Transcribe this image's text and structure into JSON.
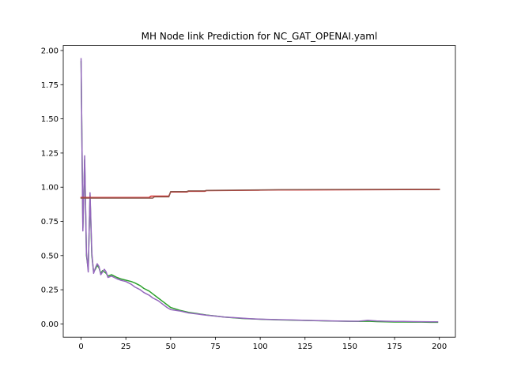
{
  "chart_data": {
    "type": "line",
    "title": "MH Node link Prediction for NC_GAT_OPENAI.yaml",
    "xlabel": "",
    "ylabel": "",
    "xlim": [
      -9.95,
      208.95
    ],
    "ylim": [
      -0.097,
      2.037
    ],
    "xticks": [
      0,
      25,
      50,
      75,
      100,
      125,
      150,
      175,
      200
    ],
    "yticks": [
      0.0,
      0.25,
      0.5,
      0.75,
      1.0,
      1.25,
      1.5,
      1.75,
      2.0
    ],
    "xtick_labels": [
      "0",
      "25",
      "50",
      "75",
      "100",
      "125",
      "150",
      "175",
      "200"
    ],
    "ytick_labels": [
      "0.00",
      "0.25",
      "0.50",
      "0.75",
      "1.00",
      "1.25",
      "1.50",
      "1.75",
      "2.00"
    ],
    "grid": false,
    "legend": "none",
    "series": [
      {
        "color": "#2ca02c",
        "points": [
          [
            0,
            1.92
          ],
          [
            1,
            0.7
          ],
          [
            2,
            1.2
          ],
          [
            3,
            0.5
          ],
          [
            4,
            0.4
          ],
          [
            5,
            0.94
          ],
          [
            6,
            0.5
          ],
          [
            7,
            0.38
          ],
          [
            8,
            0.4
          ],
          [
            9,
            0.43
          ],
          [
            10,
            0.41
          ],
          [
            11,
            0.37
          ],
          [
            12,
            0.39
          ],
          [
            13,
            0.38
          ],
          [
            14,
            0.37
          ],
          [
            15,
            0.35
          ],
          [
            17,
            0.36
          ],
          [
            20,
            0.34
          ],
          [
            22,
            0.33
          ],
          [
            25,
            0.32
          ],
          [
            28,
            0.31
          ],
          [
            30,
            0.3
          ],
          [
            33,
            0.28
          ],
          [
            35,
            0.26
          ],
          [
            38,
            0.24
          ],
          [
            40,
            0.22
          ],
          [
            43,
            0.19
          ],
          [
            45,
            0.17
          ],
          [
            48,
            0.14
          ],
          [
            50,
            0.12
          ],
          [
            55,
            0.1
          ],
          [
            60,
            0.085
          ],
          [
            65,
            0.075
          ],
          [
            70,
            0.065
          ],
          [
            75,
            0.058
          ],
          [
            80,
            0.05
          ],
          [
            85,
            0.045
          ],
          [
            90,
            0.04
          ],
          [
            95,
            0.037
          ],
          [
            100,
            0.034
          ],
          [
            110,
            0.03
          ],
          [
            120,
            0.027
          ],
          [
            130,
            0.024
          ],
          [
            140,
            0.021
          ],
          [
            150,
            0.019
          ],
          [
            155,
            0.018
          ],
          [
            160,
            0.02
          ],
          [
            165,
            0.017
          ],
          [
            170,
            0.015
          ],
          [
            175,
            0.014
          ],
          [
            180,
            0.014
          ],
          [
            185,
            0.013
          ],
          [
            190,
            0.013
          ],
          [
            195,
            0.012
          ],
          [
            199,
            0.012
          ]
        ]
      },
      {
        "color": "#9467bd",
        "points": [
          [
            0,
            1.94
          ],
          [
            1,
            0.68
          ],
          [
            2,
            1.23
          ],
          [
            3,
            0.52
          ],
          [
            4,
            0.38
          ],
          [
            5,
            0.96
          ],
          [
            6,
            0.52
          ],
          [
            7,
            0.37
          ],
          [
            8,
            0.41
          ],
          [
            9,
            0.44
          ],
          [
            10,
            0.42
          ],
          [
            11,
            0.36
          ],
          [
            12,
            0.38
          ],
          [
            13,
            0.4
          ],
          [
            14,
            0.38
          ],
          [
            15,
            0.34
          ],
          [
            17,
            0.35
          ],
          [
            20,
            0.33
          ],
          [
            22,
            0.32
          ],
          [
            25,
            0.31
          ],
          [
            28,
            0.29
          ],
          [
            30,
            0.27
          ],
          [
            33,
            0.25
          ],
          [
            35,
            0.23
          ],
          [
            38,
            0.21
          ],
          [
            40,
            0.19
          ],
          [
            43,
            0.17
          ],
          [
            45,
            0.15
          ],
          [
            48,
            0.12
          ],
          [
            50,
            0.105
          ],
          [
            55,
            0.095
          ],
          [
            60,
            0.08
          ],
          [
            65,
            0.072
          ],
          [
            70,
            0.064
          ],
          [
            75,
            0.057
          ],
          [
            80,
            0.05
          ],
          [
            85,
            0.046
          ],
          [
            90,
            0.042
          ],
          [
            95,
            0.038
          ],
          [
            100,
            0.035
          ],
          [
            110,
            0.031
          ],
          [
            120,
            0.028
          ],
          [
            130,
            0.025
          ],
          [
            140,
            0.022
          ],
          [
            150,
            0.02
          ],
          [
            155,
            0.02
          ],
          [
            160,
            0.026
          ],
          [
            165,
            0.022
          ],
          [
            170,
            0.02
          ],
          [
            175,
            0.018
          ],
          [
            180,
            0.018
          ],
          [
            185,
            0.017
          ],
          [
            190,
            0.016
          ],
          [
            195,
            0.015
          ],
          [
            199,
            0.015
          ]
        ]
      },
      {
        "color": "#d62728",
        "points": [
          [
            0,
            0.925
          ],
          [
            38,
            0.925
          ],
          [
            39,
            0.935
          ],
          [
            49,
            0.935
          ],
          [
            50,
            0.965
          ],
          [
            59,
            0.965
          ],
          [
            60,
            0.97
          ],
          [
            69,
            0.97
          ],
          [
            70,
            0.975
          ],
          [
            99,
            0.978
          ],
          [
            100,
            0.979
          ],
          [
            110,
            0.98
          ],
          [
            200,
            0.983
          ]
        ]
      },
      {
        "color": "#8c564b",
        "points": [
          [
            0,
            0.92
          ],
          [
            40,
            0.92
          ],
          [
            41,
            0.93
          ],
          [
            49,
            0.93
          ],
          [
            50,
            0.968
          ],
          [
            59,
            0.968
          ],
          [
            60,
            0.973
          ],
          [
            69,
            0.973
          ],
          [
            70,
            0.977
          ],
          [
            100,
            0.98
          ],
          [
            110,
            0.982
          ],
          [
            200,
            0.985
          ]
        ]
      }
    ]
  }
}
